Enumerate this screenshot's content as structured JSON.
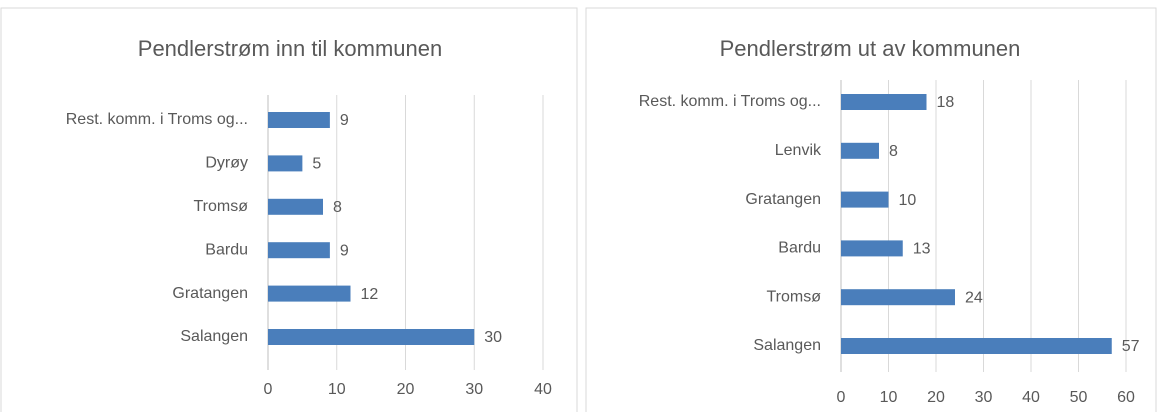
{
  "chart_data": [
    {
      "type": "bar",
      "horizontal": true,
      "title": "Pendlerstrøm inn til kommunen",
      "categories": [
        "Rest. komm. i Troms og...",
        "Dyrøy",
        "Tromsø",
        "Bardu",
        "Gratangen",
        "Salangen"
      ],
      "values": [
        9,
        5,
        8,
        9,
        12,
        30
      ],
      "color": "#4a7ebb",
      "xlim": [
        0,
        40
      ],
      "xticks": [
        0,
        10,
        20,
        30,
        40
      ],
      "grid": true
    },
    {
      "type": "bar",
      "horizontal": true,
      "title": "Pendlerstrøm ut av kommunen",
      "categories": [
        "Rest. komm. i Troms og...",
        "Lenvik",
        "Gratangen",
        "Bardu",
        "Tromsø",
        "Salangen"
      ],
      "values": [
        18,
        8,
        10,
        13,
        24,
        57
      ],
      "color": "#4a7ebb",
      "xlim": [
        0,
        60
      ],
      "xticks": [
        0,
        10,
        20,
        30,
        40,
        50,
        60
      ],
      "grid": true
    }
  ]
}
